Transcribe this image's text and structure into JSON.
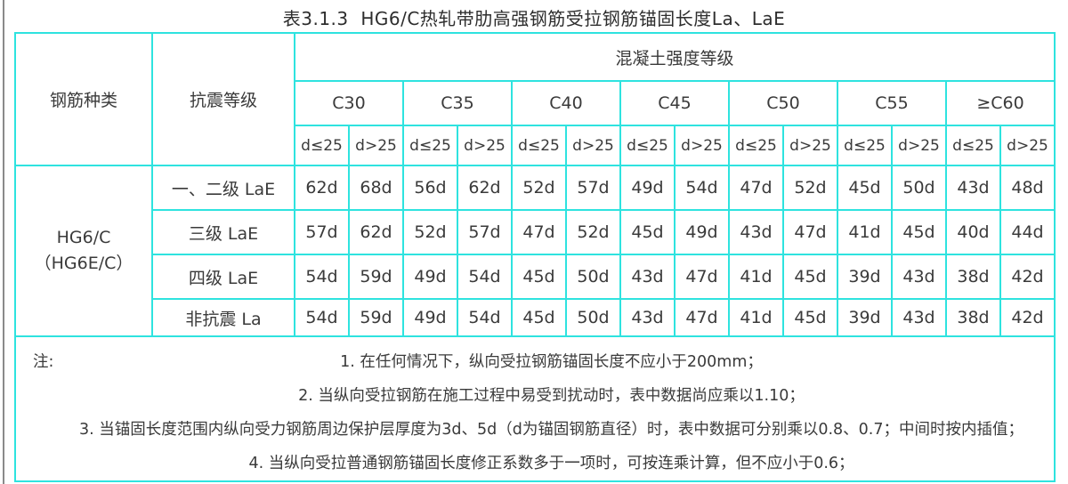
{
  "title": "表3.1.3  HG6/C热轧带肋高强钢筋受拉钢筋锚固长度La、LaE",
  "colors": {
    "grid_line": "#2ee3df",
    "text": "#3a3a3a",
    "background": "#ffffff"
  },
  "headers": {
    "rebar_type": "钢筋种类",
    "seismic_grade": "抗震等级",
    "concrete_grade": "混凝土强度等级"
  },
  "table": {
    "concrete_grades": [
      "C30",
      "C35",
      "C40",
      "C45",
      "C50",
      "C55",
      "≥C60"
    ],
    "diameter_cols": [
      "d≤25",
      "d>25"
    ],
    "rebar_type_lines": [
      "HG6/C",
      "（HG6E/C）"
    ],
    "rows": [
      {
        "label": "一、二级 LaE",
        "values": [
          "62d",
          "68d",
          "56d",
          "62d",
          "52d",
          "57d",
          "49d",
          "54d",
          "47d",
          "52d",
          "45d",
          "50d",
          "43d",
          "48d"
        ]
      },
      {
        "label": "三级 LaE",
        "values": [
          "57d",
          "62d",
          "52d",
          "57d",
          "47d",
          "52d",
          "45d",
          "49d",
          "43d",
          "47d",
          "41d",
          "45d",
          "40d",
          "44d"
        ]
      },
      {
        "label": "四级 LaE",
        "values": [
          "54d",
          "59d",
          "49d",
          "54d",
          "45d",
          "50d",
          "43d",
          "47d",
          "41d",
          "45d",
          "39d",
          "43d",
          "38d",
          "42d"
        ]
      },
      {
        "label": "非抗震 La",
        "values": [
          "54d",
          "59d",
          "49d",
          "54d",
          "45d",
          "50d",
          "43d",
          "47d",
          "41d",
          "45d",
          "39d",
          "43d",
          "38d",
          "42d"
        ]
      }
    ]
  },
  "notes_label": "注:",
  "notes": [
    "1. 在任何情况下，纵向受拉钢筋锚固长度不应小于200mm；",
    "2. 当纵向受拉钢筋在施工过程中易受到扰动时，表中数据尚应乘以1.10；",
    "3. 当锚固长度范围内纵向受力钢筋周边保护层厚度为3d、5d（d为锚固钢筋直径）时，表中数据可分别乘以0.8、0.7；中间时按内插值；",
    "4. 当纵向受拉普通钢筋锚固长度修正系数多于一项时，可按连乘计算，但不应小于0.6；"
  ]
}
